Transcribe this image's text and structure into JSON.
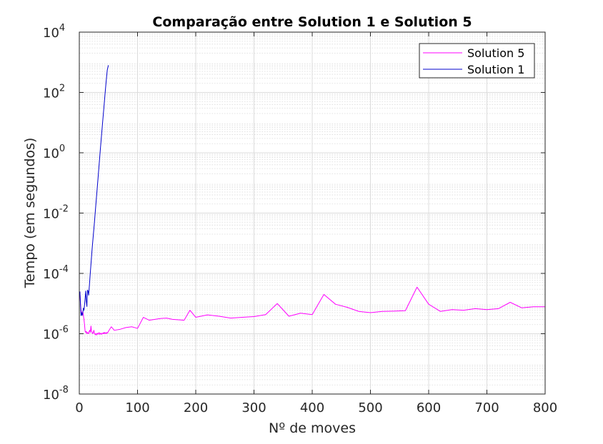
{
  "chart_data": {
    "type": "line",
    "title": "Comparação entre Solution 1 e Solution 5",
    "xlabel": "Nº de moves",
    "ylabel": "Tempo (em segundos)",
    "xlim": [
      0,
      800
    ],
    "ylim": [
      1e-08,
      10000.0
    ],
    "yscale": "log",
    "grid": true,
    "minor_grid": true,
    "legend_position": "top-right",
    "x_ticks": [
      0,
      100,
      200,
      300,
      400,
      500,
      600,
      700,
      800
    ],
    "x_tick_labels": [
      "0",
      "100",
      "200",
      "300",
      "400",
      "500",
      "600",
      "700",
      "800"
    ],
    "y_ticks": [
      {
        "value": 1e-08,
        "base": "10",
        "exp": "-8"
      },
      {
        "value": 1e-06,
        "base": "10",
        "exp": "-6"
      },
      {
        "value": 0.0001,
        "base": "10",
        "exp": "-4"
      },
      {
        "value": 0.01,
        "base": "10",
        "exp": "-2"
      },
      {
        "value": 1,
        "base": "10",
        "exp": "0"
      },
      {
        "value": 100.0,
        "base": "10",
        "exp": "2"
      },
      {
        "value": 10000.0,
        "base": "10",
        "exp": "4"
      }
    ],
    "series": [
      {
        "name": "Solution 5",
        "color": "#ff00ff",
        "points": [
          [
            1,
            2.5e-05
          ],
          [
            2,
            1e-05
          ],
          [
            3,
            6e-06
          ],
          [
            4,
            5e-06
          ],
          [
            5,
            4.5e-06
          ],
          [
            6,
            5.5e-06
          ],
          [
            7,
            4e-06
          ],
          [
            8,
            3e-06
          ],
          [
            9,
            2e-06
          ],
          [
            10,
            1.2e-06
          ],
          [
            11,
            1.1e-06
          ],
          [
            12,
            1.2e-06
          ],
          [
            13,
            1e-06
          ],
          [
            14,
            1.1e-06
          ],
          [
            15,
            1.05e-06
          ],
          [
            16,
            1e-06
          ],
          [
            17,
            1.2e-06
          ],
          [
            18,
            1.3e-06
          ],
          [
            19,
            1.1e-06
          ],
          [
            20,
            1.8e-06
          ],
          [
            21,
            1.2e-06
          ],
          [
            22,
            1.1e-06
          ],
          [
            23,
            1e-06
          ],
          [
            24,
            1.1e-06
          ],
          [
            25,
            1.3e-06
          ],
          [
            26,
            1.05e-06
          ],
          [
            27,
            9.5e-07
          ],
          [
            28,
            1e-06
          ],
          [
            29,
            9e-07
          ],
          [
            30,
            1e-06
          ],
          [
            31,
            1.05e-06
          ],
          [
            32,
            9.5e-07
          ],
          [
            33,
            1e-06
          ],
          [
            34,
            1.1e-06
          ],
          [
            35,
            9.5e-07
          ],
          [
            36,
            1e-06
          ],
          [
            37,
            1.05e-06
          ],
          [
            38,
            9.5e-07
          ],
          [
            39,
            1e-06
          ],
          [
            40,
            1.05e-06
          ],
          [
            41,
            1e-06
          ],
          [
            42,
            1.1e-06
          ],
          [
            43,
            1e-06
          ],
          [
            44,
            1.1e-06
          ],
          [
            45,
            1.05e-06
          ],
          [
            46,
            1e-06
          ],
          [
            47,
            1.1e-06
          ],
          [
            48,
            1.05e-06
          ],
          [
            49,
            1.1e-06
          ],
          [
            50,
            1.2e-06
          ],
          [
            55,
            1.7e-06
          ],
          [
            60,
            1.3e-06
          ],
          [
            70,
            1.4e-06
          ],
          [
            80,
            1.6e-06
          ],
          [
            90,
            1.7e-06
          ],
          [
            100,
            1.5e-06
          ],
          [
            110,
            3.5e-06
          ],
          [
            120,
            2.8e-06
          ],
          [
            130,
            3e-06
          ],
          [
            140,
            3.2e-06
          ],
          [
            150,
            3.3e-06
          ],
          [
            160,
            3e-06
          ],
          [
            170,
            2.9e-06
          ],
          [
            180,
            2.8e-06
          ],
          [
            190,
            6e-06
          ],
          [
            200,
            3.5e-06
          ],
          [
            220,
            4.2e-06
          ],
          [
            240,
            3.8e-06
          ],
          [
            260,
            3.3e-06
          ],
          [
            280,
            3.5e-06
          ],
          [
            300,
            3.7e-06
          ],
          [
            320,
            4.3e-06
          ],
          [
            340,
            1e-05
          ],
          [
            360,
            3.8e-06
          ],
          [
            380,
            4.8e-06
          ],
          [
            400,
            4.3e-06
          ],
          [
            420,
            2e-05
          ],
          [
            440,
            9.5e-06
          ],
          [
            460,
            7.5e-06
          ],
          [
            480,
            5.5e-06
          ],
          [
            500,
            5e-06
          ],
          [
            520,
            5.5e-06
          ],
          [
            540,
            5.6e-06
          ],
          [
            560,
            5.8e-06
          ],
          [
            580,
            3.5e-05
          ],
          [
            600,
            9.5e-06
          ],
          [
            620,
            5.5e-06
          ],
          [
            640,
            6.3e-06
          ],
          [
            660,
            6e-06
          ],
          [
            680,
            6.8e-06
          ],
          [
            700,
            6.3e-06
          ],
          [
            720,
            6.8e-06
          ],
          [
            740,
            1.1e-05
          ],
          [
            760,
            7.2e-06
          ],
          [
            780,
            7.8e-06
          ],
          [
            800,
            7.8e-06
          ]
        ]
      },
      {
        "name": "Solution 1",
        "color": "#0000cc",
        "points": [
          [
            1,
            2.5e-05
          ],
          [
            2,
            1e-05
          ],
          [
            3,
            4e-06
          ],
          [
            4,
            5e-06
          ],
          [
            5,
            4e-06
          ],
          [
            6,
            5e-06
          ],
          [
            7,
            7e-06
          ],
          [
            8,
            6e-06
          ],
          [
            9,
            9e-06
          ],
          [
            10,
            1.5e-05
          ],
          [
            11,
            2.6e-05
          ],
          [
            12,
            1.2e-05
          ],
          [
            13,
            8e-06
          ],
          [
            14,
            2.8e-05
          ],
          [
            15,
            2.6e-05
          ],
          [
            16,
            1.9e-05
          ],
          [
            17,
            3.3e-05
          ],
          [
            18,
            6e-05
          ],
          [
            19,
            0.00011
          ],
          [
            20,
            0.0002
          ],
          [
            22,
            0.00065
          ],
          [
            24,
            0.0018
          ],
          [
            26,
            0.005
          ],
          [
            28,
            0.015
          ],
          [
            30,
            0.045
          ],
          [
            32,
            0.13
          ],
          [
            34,
            0.4
          ],
          [
            36,
            1.2
          ],
          [
            38,
            3.5
          ],
          [
            40,
            10
          ],
          [
            42,
            28
          ],
          [
            44,
            80
          ],
          [
            46,
            220
          ],
          [
            48,
            550
          ],
          [
            50,
            800
          ]
        ]
      }
    ]
  }
}
